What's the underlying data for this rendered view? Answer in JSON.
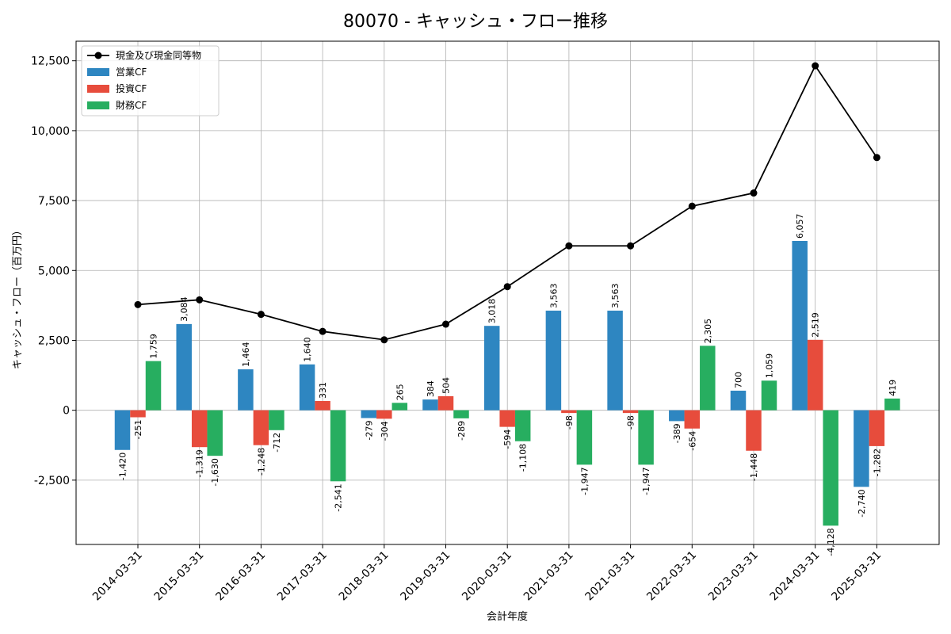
{
  "chart_data": {
    "type": "bar",
    "title": "80070 - キャッシュ・フロー推移",
    "xlabel": "会計年度",
    "ylabel": "キャッシュ・フロー（百万円）",
    "categories": [
      "2014-03-31",
      "2015-03-31",
      "2016-03-31",
      "2017-03-31",
      "2018-03-31",
      "2019-03-31",
      "2020-03-31",
      "2021-03-31",
      "2021-03-31",
      "2022-03-31",
      "2023-03-31",
      "2024-03-31",
      "2025-03-31"
    ],
    "ylim": [
      -4800,
      13200
    ],
    "yticks": [
      -2500,
      0,
      2500,
      5000,
      7500,
      10000,
      12500
    ],
    "ytick_labels": [
      "-2,500",
      "0",
      "2,500",
      "5,000",
      "7,500",
      "10,000",
      "12,500"
    ],
    "grid": true,
    "legend_position": "top-left",
    "series": [
      {
        "name": "営業CF",
        "kind": "bar",
        "color": "#2e86c1",
        "values": [
          -1420,
          3084,
          1464,
          1640,
          -279,
          384,
          3018,
          3563,
          3563,
          -389,
          700,
          6057,
          -2740
        ],
        "labels": [
          "-1,420",
          "3,084",
          "1,464",
          "1,640",
          "-279",
          "384",
          "3,018",
          "3,563",
          "3,563",
          "-389",
          "700",
          "6,057",
          "-2,740"
        ]
      },
      {
        "name": "投資CF",
        "kind": "bar",
        "color": "#e74c3c",
        "values": [
          -251,
          -1319,
          -1248,
          331,
          -304,
          504,
          -594,
          -98,
          -98,
          -654,
          -1448,
          2519,
          -1282
        ],
        "labels": [
          "-251",
          "-1,319",
          "-1,248",
          "331",
          "-304",
          "504",
          "-594",
          "-98",
          "-98",
          "-654",
          "-1,448",
          "2,519",
          "-1,282"
        ]
      },
      {
        "name": "財務CF",
        "kind": "bar",
        "color": "#27ae60",
        "values": [
          1759,
          -1630,
          -712,
          -2541,
          265,
          -289,
          -1108,
          -1947,
          -1947,
          2305,
          1059,
          -4128,
          419
        ],
        "labels": [
          "1,759",
          "-1,630",
          "-712",
          "-2,541",
          "265",
          "-289",
          "-1,108",
          "-1,947",
          "-1,947",
          "2,305",
          "1,059",
          "-4,128",
          "419"
        ]
      },
      {
        "name": "現金及び現金同等物",
        "kind": "line",
        "color": "#000000",
        "values": [
          3780,
          3950,
          3430,
          2820,
          2520,
          3080,
          4420,
          5880,
          5880,
          7300,
          7770,
          12320,
          9040
        ]
      }
    ]
  }
}
